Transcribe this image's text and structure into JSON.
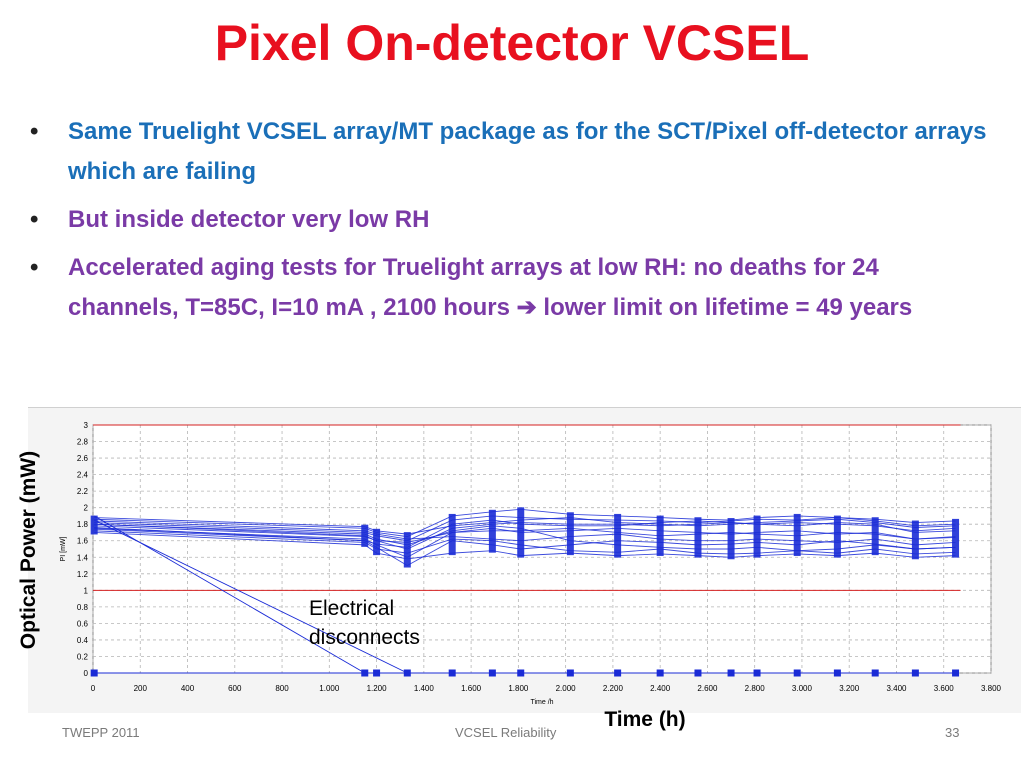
{
  "slide": {
    "title": "Pixel On-detector VCSEL",
    "bullets": [
      "Same Truelight VCSEL array/MT package as for the SCT/Pixel off-detector arrays which are failing",
      "But inside detector very low RH",
      "Accelerated aging tests for Truelight arrays at low RH: no deaths for 24 channels, T=85C, I=10 mA , 2100 hours ➔ lower limit on lifetime = 49 years"
    ],
    "bullet_glyph": "•",
    "footer_left": "TWEPP 2011",
    "footer_center": "VCSEL Reliability",
    "footer_right": "33"
  },
  "colors": {
    "title": "#e8101f",
    "bullet_blue": "#1a6fb8",
    "bullet_purple": "#7a3aa6",
    "series": "#1a2bd6",
    "limit_line": "#d42020"
  },
  "chart_data": {
    "type": "line",
    "xlabel": "Time (h)",
    "ylabel": "Optical Power (mW)",
    "inner_xlabel": "Time /h",
    "inner_ylabel": "PI [mW]",
    "xlim": [
      0,
      3800
    ],
    "ylim": [
      0,
      3
    ],
    "xticks": [
      0,
      200,
      400,
      600,
      800,
      1000,
      1200,
      1400,
      1600,
      1800,
      2000,
      2200,
      2400,
      2600,
      2800,
      3000,
      3200,
      3400,
      3600,
      3800
    ],
    "xtick_labels": [
      "0",
      "200",
      "400",
      "600",
      "800",
      "1.000",
      "1.200",
      "1.400",
      "1.600",
      "1.800",
      "2.000",
      "2.200",
      "2.400",
      "2.600",
      "2.800",
      "3.000",
      "3.200",
      "3.400",
      "3.600",
      "3.800"
    ],
    "yticks": [
      0,
      0.2,
      0.4,
      0.6,
      0.8,
      1,
      1.2,
      1.4,
      1.6,
      1.8,
      2,
      2.2,
      2.4,
      2.6,
      2.8,
      3
    ],
    "ytick_labels": [
      "0",
      "0.2",
      "0.4",
      "0.6",
      "0.8",
      "1",
      "1.2",
      "1.4",
      "1.6",
      "1.8",
      "2",
      "2.2",
      "2.4",
      "2.6",
      "2.8",
      "3"
    ],
    "grid": true,
    "reference_lines": [
      1,
      3
    ],
    "measurement_times": [
      5,
      1150,
      1200,
      1330,
      1520,
      1690,
      1810,
      2020,
      2220,
      2400,
      2560,
      2700,
      2810,
      2980,
      3150,
      3310,
      3480,
      3650
    ],
    "series": [
      {
        "values": [
          1.72,
          1.58,
          1.5,
          1.45,
          1.62,
          1.6,
          1.55,
          1.48,
          1.46,
          1.5,
          1.45,
          1.44,
          1.45,
          1.48,
          1.45,
          1.5,
          1.44,
          1.46
        ]
      },
      {
        "values": [
          1.75,
          1.62,
          1.55,
          1.4,
          1.7,
          1.75,
          1.7,
          1.72,
          1.75,
          1.72,
          1.7,
          1.68,
          1.7,
          1.72,
          1.68,
          1.7,
          1.62,
          1.65
        ]
      },
      {
        "values": [
          1.78,
          1.65,
          1.6,
          1.5,
          1.75,
          1.8,
          1.82,
          1.8,
          1.8,
          1.78,
          1.8,
          1.82,
          1.8,
          1.82,
          1.8,
          1.78,
          1.72,
          1.75
        ]
      },
      {
        "values": [
          1.8,
          1.68,
          1.62,
          1.55,
          1.72,
          1.78,
          1.75,
          1.6,
          1.55,
          1.52,
          1.5,
          1.5,
          1.52,
          1.48,
          1.5,
          1.55,
          1.5,
          1.52
        ]
      },
      {
        "values": [
          1.82,
          1.7,
          1.66,
          1.6,
          1.85,
          1.9,
          1.88,
          1.86,
          1.85,
          1.84,
          1.82,
          1.84,
          1.86,
          1.85,
          1.88,
          1.84,
          1.78,
          1.8
        ]
      },
      {
        "values": [
          1.84,
          1.72,
          1.68,
          1.62,
          1.65,
          1.62,
          1.6,
          1.65,
          1.68,
          1.62,
          1.6,
          1.6,
          1.62,
          1.6,
          1.58,
          1.62,
          1.55,
          1.58
        ]
      },
      {
        "values": [
          1.86,
          1.75,
          1.7,
          1.65,
          1.9,
          1.95,
          1.98,
          1.92,
          1.9,
          1.88,
          1.86,
          1.85,
          1.88,
          1.9,
          1.88,
          1.86,
          1.82,
          1.84
        ]
      },
      {
        "values": [
          1.7,
          1.55,
          1.45,
          1.38,
          1.45,
          1.48,
          1.42,
          1.45,
          1.42,
          1.44,
          1.42,
          1.4,
          1.42,
          1.44,
          1.42,
          1.45,
          1.4,
          1.42
        ]
      },
      {
        "values": [
          1.88,
          1.77,
          1.72,
          1.68,
          1.78,
          1.82,
          1.85,
          1.88,
          1.82,
          1.8,
          1.78,
          1.8,
          1.82,
          1.84,
          1.86,
          1.82,
          1.76,
          1.78
        ]
      },
      {
        "values": [
          1.76,
          1.6,
          1.52,
          1.3,
          1.6,
          1.55,
          1.5,
          1.55,
          1.6,
          1.58,
          1.55,
          1.56,
          1.58,
          1.55,
          1.6,
          1.56,
          1.5,
          1.52
        ]
      },
      {
        "values": [
          1.8,
          1.66,
          1.6,
          1.58,
          1.7,
          1.72,
          1.72,
          1.75,
          1.7,
          1.66,
          1.68,
          1.7,
          1.68,
          1.66,
          1.7,
          1.68,
          1.62,
          1.64
        ]
      },
      {
        "values": [
          1.74,
          1.6,
          1.56,
          1.52,
          1.8,
          1.85,
          1.8,
          1.78,
          1.78,
          1.82,
          1.84,
          1.82,
          1.8,
          1.78,
          1.82,
          1.8,
          1.7,
          1.72
        ]
      }
    ],
    "failing_channels": [
      {
        "x": [
          5,
          1150
        ],
        "values": [
          1.9,
          0
        ]
      },
      {
        "x": [
          5,
          1330
        ],
        "values": [
          1.85,
          0
        ]
      }
    ],
    "zero_markers_x": [
      5,
      1150,
      1200,
      1330,
      1520,
      1690,
      1810,
      2020,
      2220,
      2400,
      2560,
      2700,
      2810,
      2980,
      3150,
      3310,
      3480,
      3650
    ],
    "annotations": [
      "Electrical",
      "disconnects"
    ]
  }
}
